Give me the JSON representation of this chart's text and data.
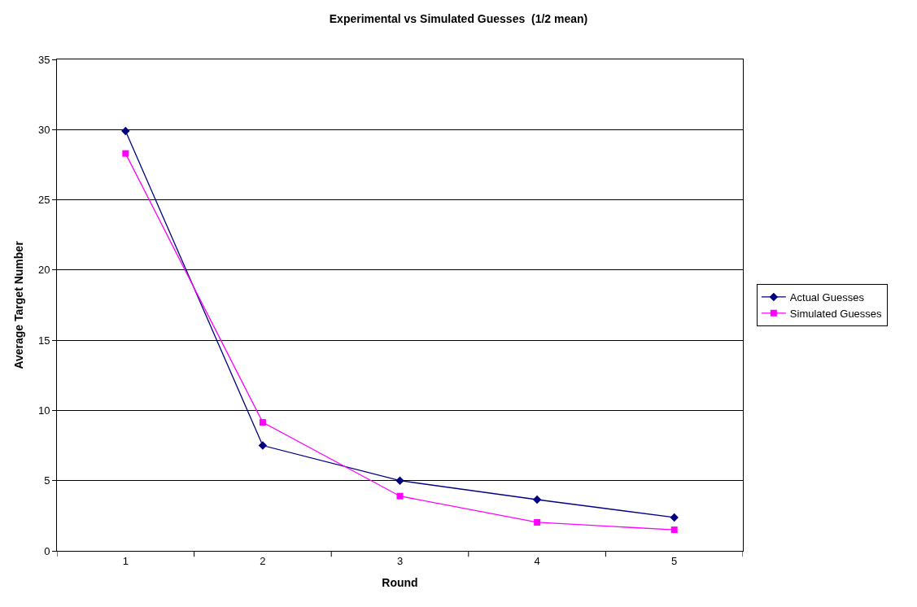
{
  "chart_data": {
    "type": "line",
    "title": "Experimental vs Simulated Guesses  (1/2 mean)",
    "xlabel": "Round",
    "ylabel": "Average Target Number",
    "categories": [
      "1",
      "2",
      "3",
      "4",
      "5"
    ],
    "series": [
      {
        "name": "Actual Guesses",
        "color": "#000080",
        "marker": "diamond",
        "values": [
          29.9,
          7.5,
          5.0,
          3.65,
          2.38
        ]
      },
      {
        "name": "Simulated Guesses",
        "color": "#ff00ff",
        "marker": "square",
        "values": [
          28.3,
          9.15,
          3.9,
          2.03,
          1.5
        ]
      }
    ],
    "ylim": [
      0,
      35
    ],
    "yticks": [
      0,
      5,
      10,
      15,
      20,
      25,
      30,
      35
    ],
    "grid": "y",
    "legend": "right",
    "line_style": "solid"
  }
}
